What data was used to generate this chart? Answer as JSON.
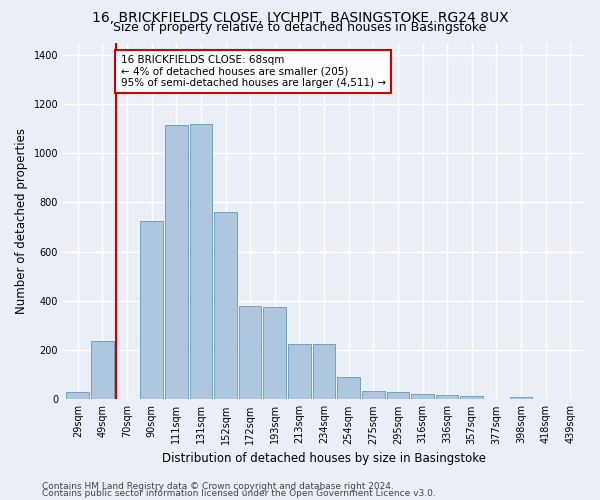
{
  "title1": "16, BRICKFIELDS CLOSE, LYCHPIT, BASINGSTOKE, RG24 8UX",
  "title2": "Size of property relative to detached houses in Basingstoke",
  "xlabel": "Distribution of detached houses by size in Basingstoke",
  "ylabel": "Number of detached properties",
  "categories": [
    "29sqm",
    "49sqm",
    "70sqm",
    "90sqm",
    "111sqm",
    "131sqm",
    "152sqm",
    "172sqm",
    "193sqm",
    "213sqm",
    "234sqm",
    "254sqm",
    "275sqm",
    "295sqm",
    "316sqm",
    "336sqm",
    "357sqm",
    "377sqm",
    "398sqm",
    "418sqm",
    "439sqm"
  ],
  "values": [
    30,
    235,
    0,
    725,
    1115,
    1120,
    760,
    380,
    375,
    225,
    225,
    90,
    33,
    30,
    23,
    18,
    12,
    0,
    10,
    0,
    0
  ],
  "bar_color": "#aec6de",
  "bar_edge_color": "#6699bb",
  "subject_line_color": "#cc0000",
  "subject_line_idx": 2,
  "annotation_text": "16 BRICKFIELDS CLOSE: 68sqm\n← 4% of detached houses are smaller (205)\n95% of semi-detached houses are larger (4,511) →",
  "annotation_box_color": "#cc0000",
  "ylim": [
    0,
    1450
  ],
  "yticks": [
    0,
    200,
    400,
    600,
    800,
    1000,
    1200,
    1400
  ],
  "footer1": "Contains HM Land Registry data © Crown copyright and database right 2024.",
  "footer2": "Contains public sector information licensed under the Open Government Licence v3.0.",
  "bg_color": "#eaeff7",
  "plot_bg_color": "#eaeff7",
  "grid_color": "#ffffff",
  "title_fontsize": 10,
  "subtitle_fontsize": 9,
  "label_fontsize": 8.5,
  "tick_fontsize": 7,
  "footer_fontsize": 6.5,
  "ann_fontsize": 7.5
}
